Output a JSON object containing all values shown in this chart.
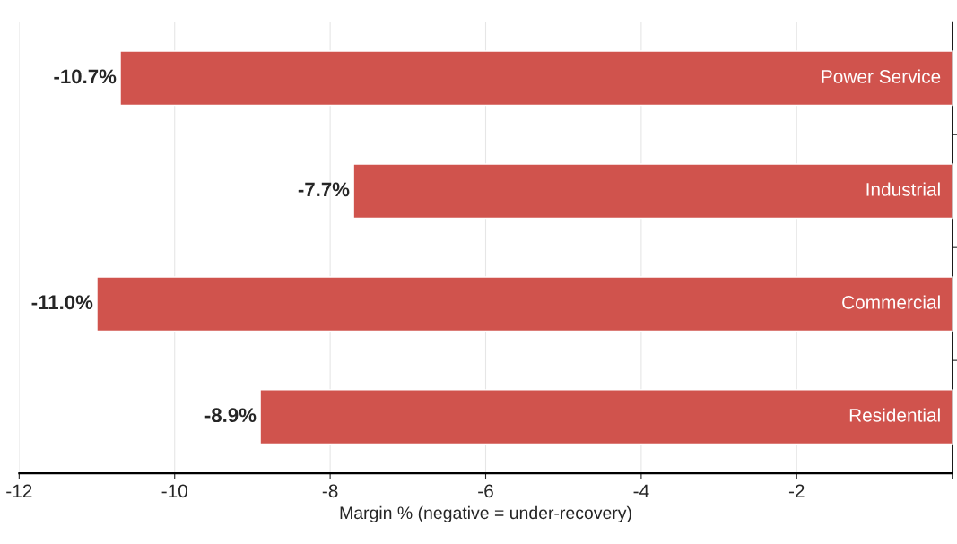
{
  "chart_data": {
    "type": "bar",
    "orientation": "horizontal",
    "xlabel": "Margin % (negative = under-recovery)",
    "categories": [
      "Power Service",
      "Industrial",
      "Commercial",
      "Residential"
    ],
    "values": [
      -10.7,
      -7.7,
      -11.0,
      -8.9
    ],
    "value_labels": [
      "-10.7%",
      "-7.7%",
      "-11.0%",
      "-8.9%"
    ],
    "color": "#d0534d",
    "xlim": [
      -12,
      0
    ],
    "xticks": [
      -12,
      -10,
      -8,
      -6,
      -4,
      -2,
      {
        "value": 0,
        "label": null
      }
    ],
    "grid": "x"
  }
}
